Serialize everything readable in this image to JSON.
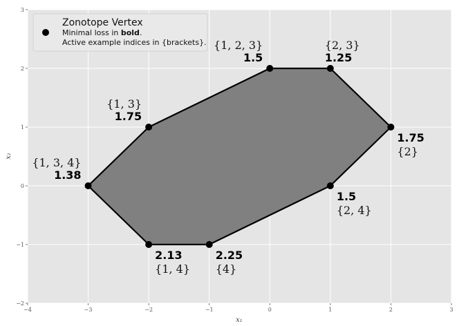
{
  "chart_data": {
    "type": "scatter",
    "xlabel": "x₁",
    "ylabel": "x₂",
    "xlim": [
      -4,
      3
    ],
    "ylim": [
      -2,
      3
    ],
    "x_ticks": [
      -4,
      -3,
      -2,
      -1,
      0,
      1,
      2,
      3
    ],
    "y_ticks": [
      -2,
      -1,
      0,
      1,
      2,
      3
    ],
    "grid": true,
    "legend": {
      "placement": "top-left",
      "title": "Zonotope Vertex",
      "line1_prefix": "Minimal loss in ",
      "line1_bold": "bold",
      "line1_suffix": ".",
      "line2": "Active example indices in {brackets}."
    },
    "polygon_fill": "#808080",
    "vertices": [
      {
        "x": -3,
        "y": 0,
        "loss": "1.38",
        "set": "{1, 3, 4}",
        "label_side": "upper-left"
      },
      {
        "x": -2,
        "y": 1,
        "loss": "1.75",
        "set": "{1, 3}",
        "label_side": "upper-left"
      },
      {
        "x": 0,
        "y": 2,
        "loss": "1.5",
        "set": "{1, 2, 3}",
        "label_side": "upper-left"
      },
      {
        "x": 1,
        "y": 2,
        "loss": "1.25",
        "set": "{2, 3}",
        "label_side": "upper-right"
      },
      {
        "x": 2,
        "y": 1,
        "loss": "1.75",
        "set": "{2}",
        "label_side": "lower-right"
      },
      {
        "x": 1,
        "y": 0,
        "loss": "1.5",
        "set": "{2, 4}",
        "label_side": "lower-right"
      },
      {
        "x": -1,
        "y": -1,
        "loss": "2.25",
        "set": "{4}",
        "label_side": "lower-right"
      },
      {
        "x": -2,
        "y": -1,
        "loss": "2.13",
        "set": "{1, 4}",
        "label_side": "lower-right"
      }
    ]
  }
}
